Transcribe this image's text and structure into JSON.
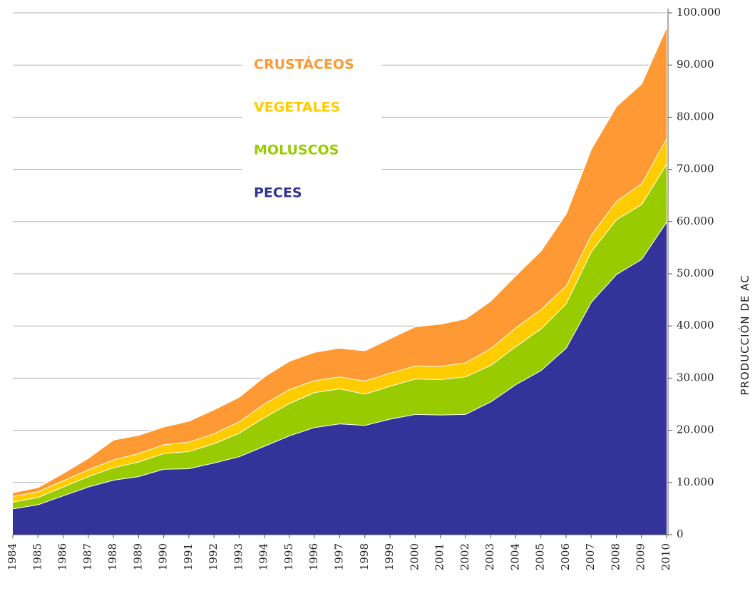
{
  "chart_data": {
    "type": "stacked_area",
    "y_label": "PRODUCCIÓN DE AC",
    "categories": [
      "1984",
      "1985",
      "1986",
      "1987",
      "1988",
      "1989",
      "1990",
      "1991",
      "1992",
      "1993",
      "1994",
      "1995",
      "1996",
      "1997",
      "1998",
      "1999",
      "2000",
      "2001",
      "2002",
      "2003",
      "2004",
      "2005",
      "2006",
      "2007",
      "2008",
      "2009",
      "2010"
    ],
    "series": [
      {
        "name": "PECES",
        "color": "#333399",
        "values": [
          5000,
          5800,
          7500,
          9200,
          10500,
          11200,
          12600,
          12700,
          13800,
          15000,
          17000,
          19000,
          20600,
          21300,
          21000,
          22200,
          23100,
          23000,
          23100,
          25500,
          28800,
          31500,
          35800,
          44600,
          49900,
          52800,
          60000
        ]
      },
      {
        "name": "MOLUSCOS",
        "color": "#99cc00",
        "values": [
          1300,
          1400,
          1700,
          2000,
          2400,
          2800,
          3000,
          3300,
          3700,
          4500,
          5500,
          6200,
          6700,
          6700,
          6000,
          6300,
          6800,
          6800,
          7200,
          7000,
          7300,
          8000,
          8500,
          9700,
          10500,
          10500,
          11100
        ]
      },
      {
        "name": "VEGETALES",
        "color": "#ffcc00",
        "values": [
          1100,
          1100,
          1200,
          1300,
          1500,
          1600,
          1700,
          1800,
          1900,
          2200,
          2600,
          2700,
          2300,
          2300,
          2500,
          2500,
          2500,
          2500,
          2700,
          3200,
          3600,
          3700,
          3400,
          3200,
          3500,
          4000,
          4900
        ]
      },
      {
        "name": "CRUSTÁCEOS",
        "color": "#ff9933",
        "values": [
          700,
          800,
          1400,
          2200,
          3800,
          3500,
          3400,
          4000,
          4600,
          4700,
          5200,
          5400,
          5400,
          5500,
          5800,
          6600,
          7500,
          8100,
          8400,
          9100,
          10000,
          11200,
          13800,
          16400,
          18200,
          19100,
          21300
        ]
      }
    ],
    "ylim": [
      0,
      100000
    ],
    "yticks": [
      0,
      {
        "value": 10000,
        "label": "10.000"
      },
      {
        "value": 20000,
        "label": "20.000"
      },
      {
        "value": 30000,
        "label": "30.000"
      },
      {
        "value": 40000,
        "label": "40.000"
      },
      {
        "value": 50000,
        "label": "50.000"
      },
      {
        "value": 60000,
        "label": "60.000"
      },
      {
        "value": 70000,
        "label": "70.000"
      },
      {
        "value": 80000,
        "label": "80.000"
      },
      {
        "value": 90000,
        "label": "90.000"
      },
      {
        "value": 100000,
        "label": "100.000"
      }
    ],
    "grid": true
  }
}
